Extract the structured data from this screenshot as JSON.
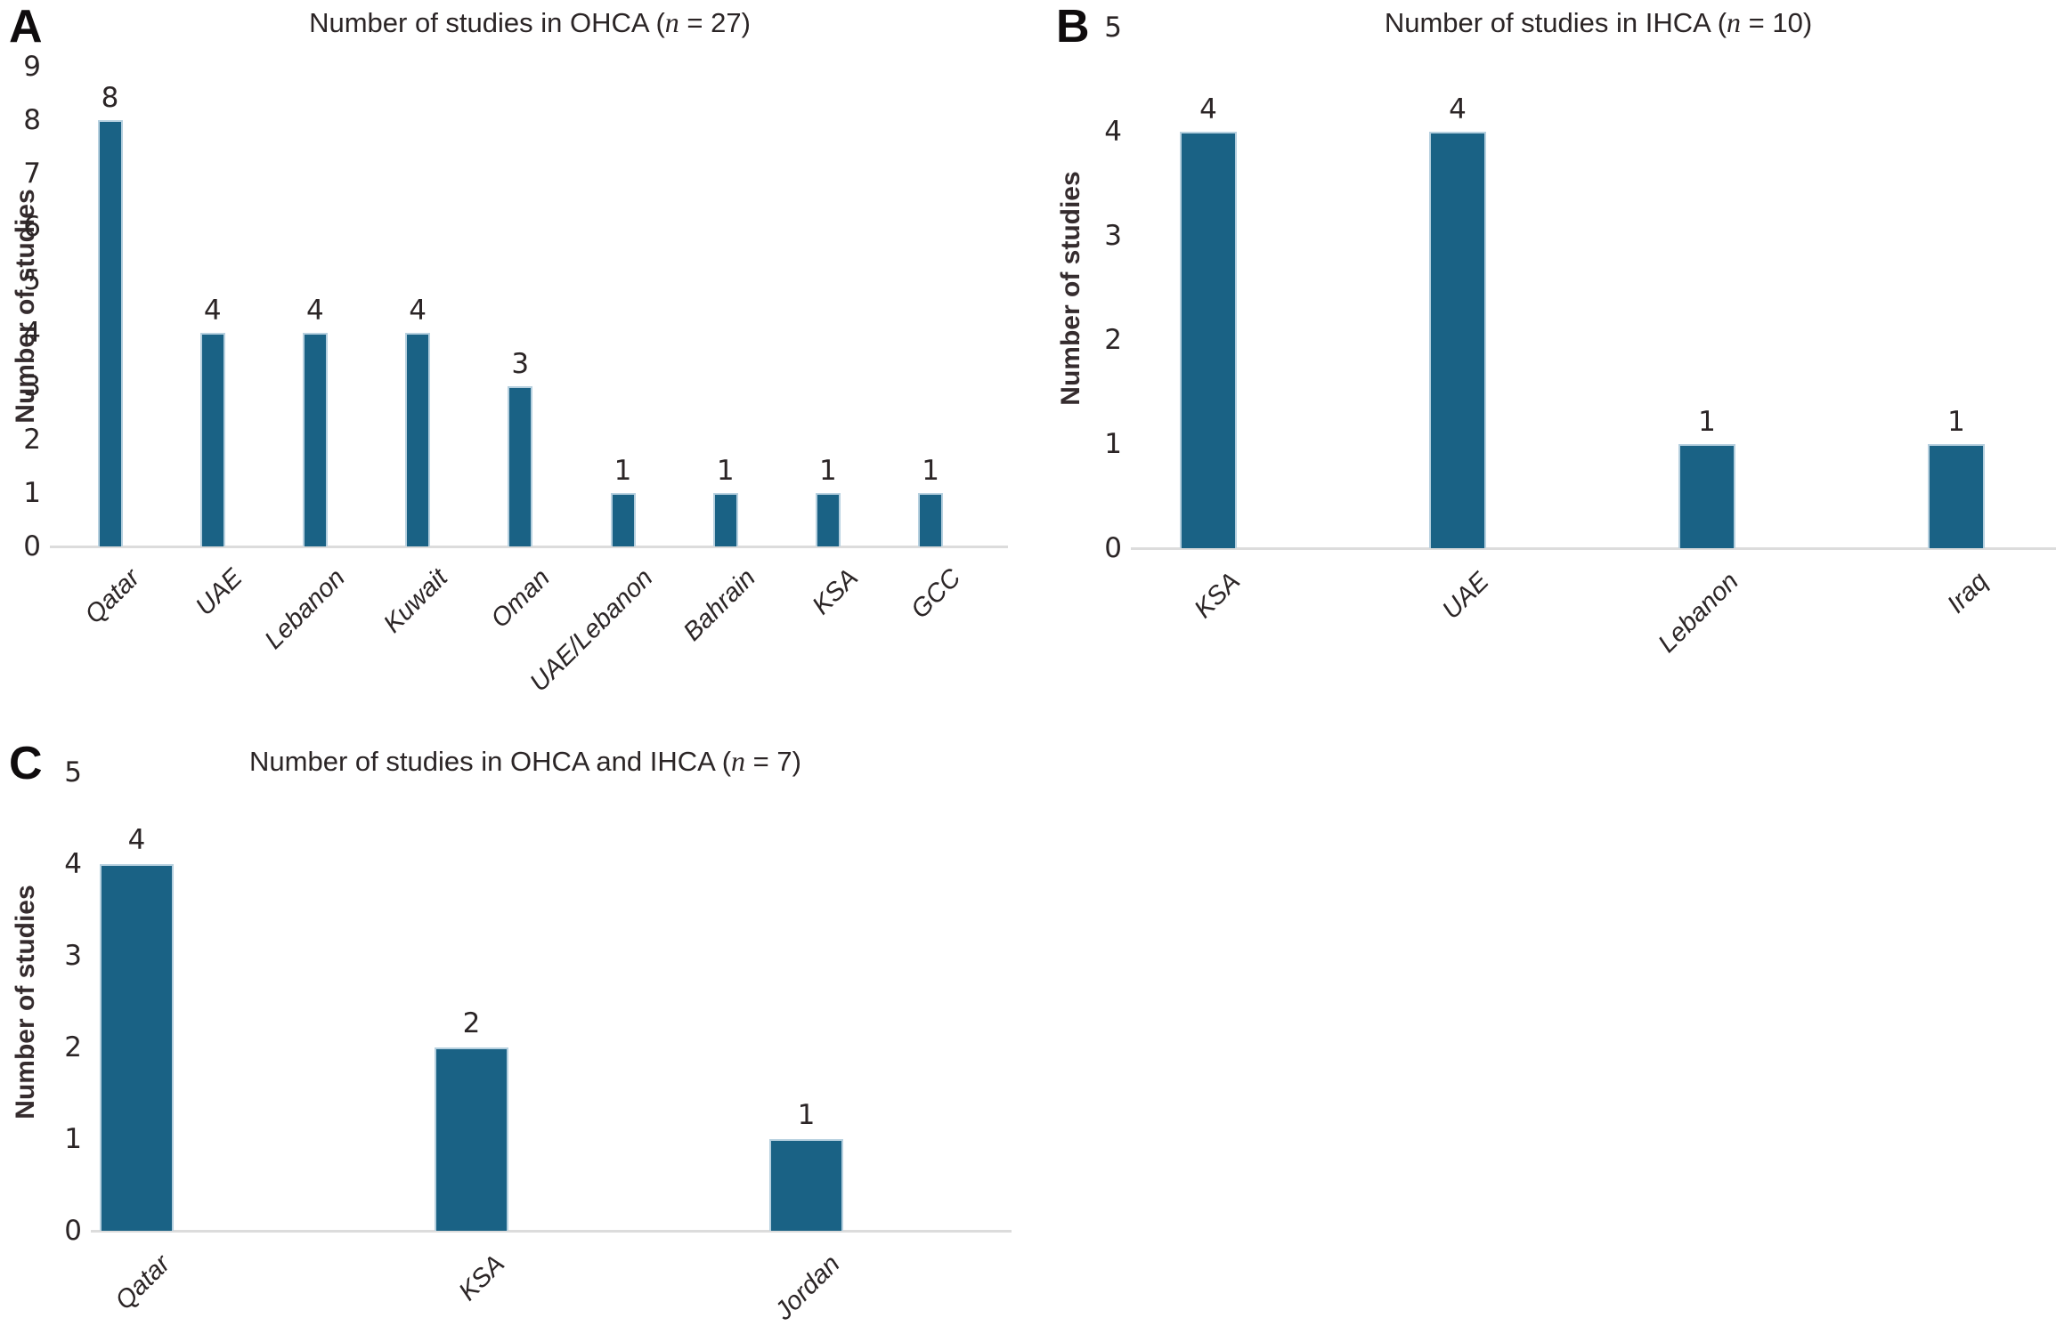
{
  "figure": {
    "bar_color": "#1a6285",
    "bar_border_color": "#b6d0df",
    "axis_line_color": "#dcdcdc",
    "text_color": "#2b2526",
    "panels": [
      {
        "label": "A",
        "title": "Number of studies in OHCA (n = 27)",
        "title_prefix": "Number of studies in OHCA (",
        "title_n": "n",
        "title_suffix": " = 27)",
        "y_label": "Number of studies"
      },
      {
        "label": "B",
        "title": "Number of studies in IHCA (n = 10)",
        "title_prefix": "Number of studies in IHCA (",
        "title_n": "n",
        "title_suffix": " = 10)",
        "y_label": "Number of studies"
      },
      {
        "label": "C",
        "title": "Number of studies in OHCA and IHCA (n = 7)",
        "title_prefix": "Number of studies in OHCA and IHCA (",
        "title_n": "n",
        "title_suffix": " = 7)",
        "y_label": "Number of studies"
      }
    ]
  },
  "chart_data": [
    {
      "type": "bar",
      "panel": "A",
      "title": "Number of studies in OHCA (n = 27)",
      "xlabel": "",
      "ylabel": "Number of studies",
      "categories": [
        "Qatar",
        "UAE",
        "Lebanon",
        "Kuwait",
        "Oman",
        "UAE/Lebanon",
        "Bahrain",
        "KSA",
        "GCC"
      ],
      "values": [
        8,
        4,
        4,
        4,
        3,
        1,
        1,
        1,
        1
      ],
      "data_labels": [
        "8",
        "4",
        "4",
        "4",
        "3",
        "1",
        "1",
        "1",
        "1"
      ],
      "ylim": [
        0,
        9
      ],
      "y_ticks": [
        0,
        1,
        2,
        3,
        4,
        5,
        6,
        7,
        8,
        9
      ],
      "grid": false,
      "legend": false,
      "bar_color": "#1a6285"
    },
    {
      "type": "bar",
      "panel": "B",
      "title": "Number of studies in IHCA (n = 10)",
      "xlabel": "",
      "ylabel": "Number of studies",
      "categories": [
        "KSA",
        "UAE",
        "Lebanon",
        "Iraq"
      ],
      "values": [
        4,
        4,
        1,
        1
      ],
      "data_labels": [
        "4",
        "4",
        "1",
        "1"
      ],
      "ylim": [
        0,
        5
      ],
      "y_ticks": [
        0,
        1,
        2,
        3,
        4,
        5
      ],
      "grid": false,
      "legend": false,
      "bar_color": "#1a6285"
    },
    {
      "type": "bar",
      "panel": "C",
      "title": "Number of studies in OHCA and IHCA (n = 7)",
      "xlabel": "",
      "ylabel": "Number of studies",
      "categories": [
        "Qatar",
        "KSA",
        "Jordan"
      ],
      "values": [
        4,
        2,
        1
      ],
      "data_labels": [
        "4",
        "2",
        "1"
      ],
      "ylim": [
        0,
        5
      ],
      "y_ticks": [
        0,
        1,
        2,
        3,
        4,
        5
      ],
      "grid": false,
      "legend": false,
      "bar_color": "#1a6285"
    }
  ]
}
